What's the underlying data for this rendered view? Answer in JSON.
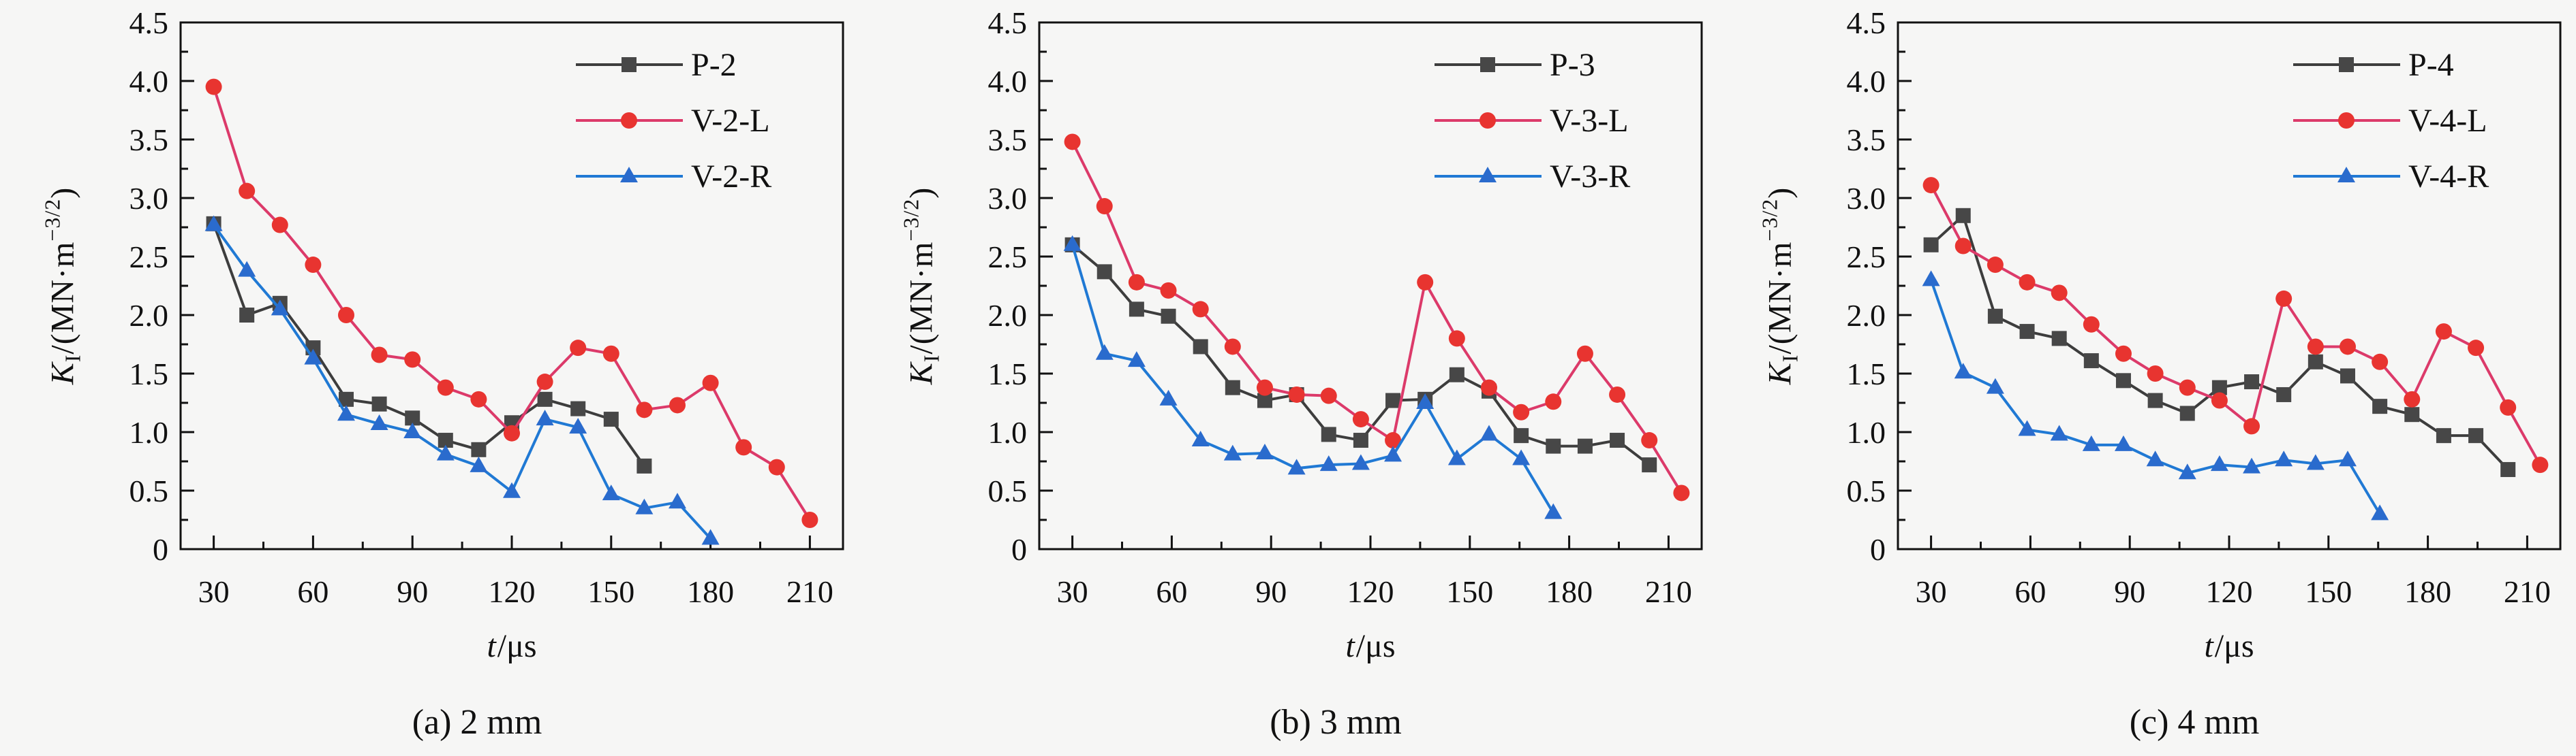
{
  "figure": {
    "background": "#f6f6f5",
    "axis_color": "#111111",
    "tick_label_color": "#111111"
  },
  "chart_data": [
    {
      "type": "line",
      "caption": "(a) 2 mm",
      "xlabel": {
        "var": "t",
        "rest": "/μs"
      },
      "ylabel": {
        "var": "K",
        "sub": "I",
        "mid": "/(MN·m",
        "sup": "−3/2",
        "end": ")"
      },
      "xlim": [
        20,
        220
      ],
      "ylim": [
        0,
        4.5
      ],
      "xticks": [
        30,
        60,
        90,
        120,
        150,
        180,
        210
      ],
      "xminorticks": [
        45,
        75,
        105,
        135,
        165,
        195
      ],
      "yticks": [
        0,
        0.5,
        1.0,
        1.5,
        2.0,
        2.5,
        3.0,
        3.5,
        4.0,
        4.5
      ],
      "ytick_labels": [
        "0",
        "0.5",
        "1.0",
        "1.5",
        "2.0",
        "2.5",
        "3.0",
        "3.5",
        "4.0",
        "4.5"
      ],
      "yminorticks": [
        0.25,
        0.75,
        1.25,
        1.75,
        2.25,
        2.75,
        3.25,
        3.75,
        4.25
      ],
      "grid": false,
      "legend_position": "top-right",
      "series": [
        {
          "name": "P-2",
          "marker": "square",
          "line_color": "#3d3d3d",
          "marker_color": "#474747",
          "x": [
            30,
            40,
            50,
            60,
            70,
            80,
            90,
            100,
            110,
            120,
            130,
            140,
            150,
            160
          ],
          "y": [
            2.78,
            2.0,
            2.1,
            1.72,
            1.28,
            1.24,
            1.12,
            0.93,
            0.85,
            1.08,
            1.28,
            1.2,
            1.11,
            0.71
          ]
        },
        {
          "name": "V-2-L",
          "marker": "circle",
          "line_color": "#dc3a6a",
          "marker_color": "#e83430",
          "x": [
            30,
            40,
            50,
            60,
            70,
            80,
            90,
            100,
            110,
            120,
            130,
            140,
            150,
            160,
            170,
            180,
            190,
            200,
            210
          ],
          "y": [
            3.95,
            3.06,
            2.77,
            2.43,
            2.0,
            1.66,
            1.62,
            1.38,
            1.28,
            0.99,
            1.43,
            1.72,
            1.67,
            1.19,
            1.23,
            1.42,
            0.87,
            0.7,
            0.25
          ]
        },
        {
          "name": "V-2-R",
          "marker": "triangle",
          "line_color": "#2079d4",
          "marker_color": "#2a6bcd",
          "x": [
            30,
            40,
            50,
            60,
            70,
            80,
            90,
            100,
            110,
            120,
            130,
            140,
            150,
            160,
            170,
            180
          ],
          "y": [
            2.77,
            2.38,
            2.05,
            1.63,
            1.15,
            1.07,
            1.0,
            0.81,
            0.71,
            0.49,
            1.11,
            1.04,
            0.47,
            0.35,
            0.4,
            0.09
          ]
        }
      ]
    },
    {
      "type": "line",
      "caption": "(b) 3 mm",
      "xlabel": {
        "var": "t",
        "rest": "/μs"
      },
      "ylabel": {
        "var": "K",
        "sub": "I",
        "mid": "/(MN·m",
        "sup": "−3/2",
        "end": ")"
      },
      "xlim": [
        20,
        220
      ],
      "ylim": [
        0,
        4.5
      ],
      "xticks": [
        30,
        60,
        90,
        120,
        150,
        180,
        210
      ],
      "xminorticks": [
        45,
        75,
        105,
        135,
        165,
        195
      ],
      "yticks": [
        0,
        0.5,
        1.0,
        1.5,
        2.0,
        2.5,
        3.0,
        3.5,
        4.0,
        4.5
      ],
      "ytick_labels": [
        "0",
        "0.5",
        "1.0",
        "1.5",
        "2.0",
        "2.5",
        "3.0",
        "3.5",
        "4.0",
        "4.5"
      ],
      "yminorticks": [
        0.25,
        0.75,
        1.25,
        1.75,
        2.25,
        2.75,
        3.25,
        3.75,
        4.25
      ],
      "grid": false,
      "legend_position": "top-right",
      "series": [
        {
          "name": "P-3",
          "marker": "square",
          "line_color": "#3d3d3d",
          "marker_color": "#474747",
          "x": [
            30,
            39.7,
            49.4,
            59.0,
            68.7,
            78.4,
            88.1,
            97.7,
            107.4,
            117.1,
            126.8,
            136.5,
            146.1,
            155.8,
            165.5,
            175.2,
            184.8,
            194.5,
            204.2
          ],
          "y": [
            2.6,
            2.37,
            2.05,
            1.99,
            1.73,
            1.38,
            1.27,
            1.32,
            0.98,
            0.93,
            1.27,
            1.28,
            1.49,
            1.35,
            0.97,
            0.88,
            0.88,
            0.93,
            0.72
          ]
        },
        {
          "name": "V-3-L",
          "marker": "circle",
          "line_color": "#dc3a6a",
          "marker_color": "#e83430",
          "x": [
            30,
            39.7,
            49.4,
            59.0,
            68.7,
            78.4,
            88.1,
            97.7,
            107.4,
            117.1,
            126.8,
            136.5,
            146.1,
            155.8,
            165.5,
            175.2,
            184.8,
            194.5,
            204.2,
            213.9
          ],
          "y": [
            3.48,
            2.93,
            2.28,
            2.21,
            2.05,
            1.73,
            1.38,
            1.32,
            1.31,
            1.11,
            0.93,
            2.28,
            1.8,
            1.38,
            1.17,
            1.26,
            1.67,
            1.32,
            0.93,
            0.48
          ]
        },
        {
          "name": "V-3-R",
          "marker": "triangle",
          "line_color": "#2079d4",
          "marker_color": "#2a6bcd",
          "x": [
            30,
            39.7,
            49.4,
            59.0,
            68.7,
            78.4,
            88.1,
            97.7,
            107.4,
            117.1,
            126.8,
            136.5,
            146.1,
            155.8,
            165.5,
            175.2
          ],
          "y": [
            2.6,
            1.67,
            1.61,
            1.28,
            0.93,
            0.81,
            0.82,
            0.69,
            0.72,
            0.73,
            0.8,
            1.25,
            0.77,
            0.98,
            0.77,
            0.31
          ]
        }
      ]
    },
    {
      "type": "line",
      "caption": "(c) 4 mm",
      "xlabel": {
        "var": "t",
        "rest": "/μs"
      },
      "ylabel": {
        "var": "K",
        "sub": "I",
        "mid": "/(MN·m",
        "sup": "−3/2",
        "end": ")"
      },
      "xlim": [
        20,
        220
      ],
      "ylim": [
        0,
        4.5
      ],
      "xticks": [
        30,
        60,
        90,
        120,
        150,
        180,
        210
      ],
      "xminorticks": [
        45,
        75,
        105,
        135,
        165,
        195
      ],
      "yticks": [
        0,
        0.5,
        1.0,
        1.5,
        2.0,
        2.5,
        3.0,
        3.5,
        4.0,
        4.5
      ],
      "ytick_labels": [
        "0",
        "0.5",
        "1.0",
        "1.5",
        "2.0",
        "2.5",
        "3.0",
        "3.5",
        "4.0",
        "4.5"
      ],
      "yminorticks": [
        0.25,
        0.75,
        1.25,
        1.75,
        2.25,
        2.75,
        3.25,
        3.75,
        4.25
      ],
      "grid": false,
      "legend_position": "top-right",
      "series": [
        {
          "name": "P-4",
          "marker": "square",
          "line_color": "#3d3d3d",
          "marker_color": "#474747",
          "x": [
            30,
            39.7,
            49.4,
            59.0,
            68.7,
            78.4,
            88.1,
            97.7,
            107.4,
            117.1,
            126.8,
            136.5,
            146.1,
            155.8,
            165.5,
            175.2,
            184.8,
            194.5,
            204.2
          ],
          "y": [
            2.6,
            2.85,
            1.99,
            1.86,
            1.8,
            1.61,
            1.44,
            1.27,
            1.16,
            1.38,
            1.43,
            1.32,
            1.6,
            1.48,
            1.22,
            1.15,
            0.97,
            0.97,
            0.68
          ]
        },
        {
          "name": "V-4-L",
          "marker": "circle",
          "line_color": "#dc3a6a",
          "marker_color": "#e83430",
          "x": [
            30,
            39.7,
            49.4,
            59.0,
            68.7,
            78.4,
            88.1,
            97.7,
            107.4,
            117.1,
            126.8,
            136.5,
            146.1,
            155.8,
            165.5,
            175.2,
            184.8,
            194.5,
            204.2,
            213.9
          ],
          "y": [
            3.11,
            2.59,
            2.43,
            2.28,
            2.19,
            1.92,
            1.67,
            1.5,
            1.38,
            1.27,
            1.05,
            2.14,
            1.73,
            1.73,
            1.6,
            1.28,
            1.86,
            1.72,
            1.21,
            0.72
          ]
        },
        {
          "name": "V-4-R",
          "marker": "triangle",
          "line_color": "#2079d4",
          "marker_color": "#2a6bcd",
          "x": [
            30,
            39.7,
            49.4,
            59.0,
            68.7,
            78.4,
            88.1,
            97.7,
            107.4,
            117.1,
            126.8,
            136.5,
            146.1,
            155.8,
            165.5
          ],
          "y": [
            2.3,
            1.51,
            1.38,
            1.02,
            0.98,
            0.89,
            0.89,
            0.76,
            0.65,
            0.72,
            0.7,
            0.76,
            0.73,
            0.76,
            0.3
          ]
        }
      ]
    }
  ]
}
